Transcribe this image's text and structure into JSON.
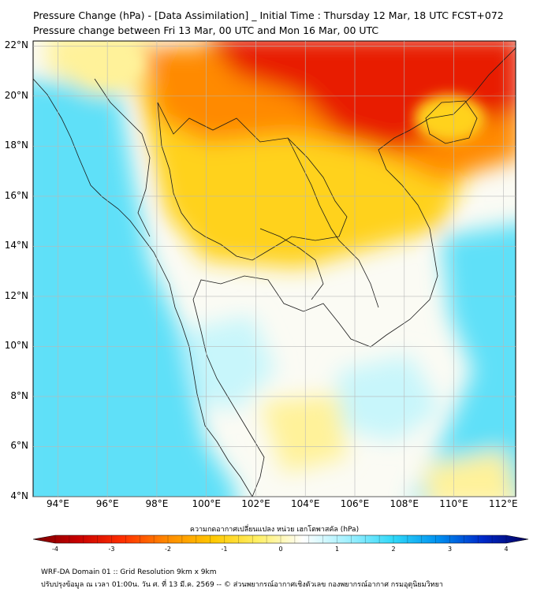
{
  "title_line1": "Pressure Change (hPa) - [Data Assimilation] _ Initial Time : Thursday 12 Mar, 18 UTC FCST+072",
  "title_line2": "Pressure change between Fri 13 Mar, 00 UTC and Mon 16 Mar, 00 UTC",
  "lat_labels": [
    "22°N",
    "20°N",
    "18°N",
    "16°N",
    "14°N",
    "12°N",
    "10°N",
    "8°N",
    "6°N",
    "4°N"
  ],
  "lon_labels": [
    "94°E",
    "96°E",
    "98°E",
    "100°E",
    "102°E",
    "104°E",
    "106°E",
    "108°E",
    "110°E",
    "112°E"
  ],
  "map_extent": {
    "lon_min": 93,
    "lon_max": 112.5,
    "lat_min": 4,
    "lat_max": 22.2
  },
  "colorbar": {
    "label": "ความกดอากาศเปลี่ยนแปลง หน่วย เฮกโตพาสคัล (hPa)",
    "ticks": [
      "-4",
      "-3",
      "-2",
      "-1",
      "0",
      "1",
      "2",
      "3",
      "4"
    ],
    "min": -4,
    "max": 4,
    "colors": [
      "#7a0000",
      "#c80000",
      "#ff3000",
      "#ff8c00",
      "#ffc800",
      "#fff066",
      "#ffffff",
      "#a0f0ff",
      "#30d8f8",
      "#0090f0",
      "#0028c8",
      "#00005a"
    ]
  },
  "footer_line1": "WRF-DA Domain 01 :: Grid Resolution 9km x 9km",
  "footer_line2": "ปรับปรุงข้อมูล ณ เวลา 01:00น. วัน ศ. ที่ 13 มี.ค. 2569 -- © ส่วนพยากรณ์อากาศเชิงตัวเลข กองพยากรณ์อากาศ กรมอุตุนิยมวิทยา",
  "field_colors": {
    "strong_fall": "#e81a00",
    "fall": "#ff8a00",
    "moderate_fall": "#ffd21a",
    "slight_fall": "#fff29a",
    "neutral": "#fbfbf4",
    "slight_rise": "#c8f6fb",
    "rise": "#5fe0f8",
    "coastline": "#1a1a1a"
  }
}
